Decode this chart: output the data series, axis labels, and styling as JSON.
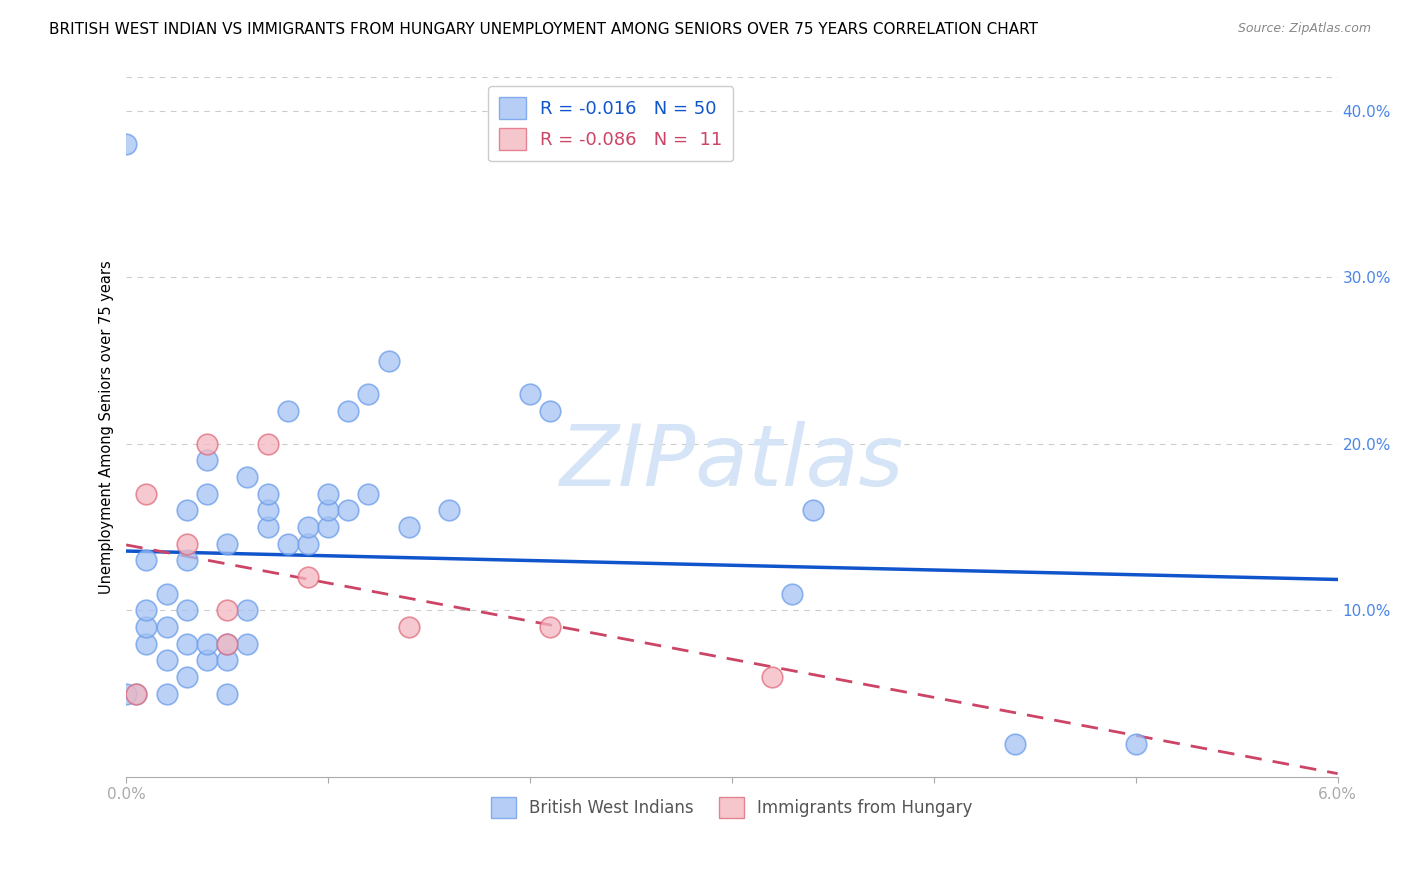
{
  "title": "BRITISH WEST INDIAN VS IMMIGRANTS FROM HUNGARY UNEMPLOYMENT AMONG SENIORS OVER 75 YEARS CORRELATION CHART",
  "source": "Source: ZipAtlas.com",
  "ylabel": "Unemployment Among Seniors over 75 years",
  "xlim": [
    0.0,
    0.06
  ],
  "ylim": [
    0.0,
    0.42
  ],
  "xticks": [
    0.0,
    0.01,
    0.02,
    0.03,
    0.04,
    0.05,
    0.06
  ],
  "xticklabels": [
    "0.0%",
    "",
    "",
    "",
    "",
    "",
    "6.0%"
  ],
  "yticks": [
    0.0,
    0.1,
    0.2,
    0.3,
    0.4
  ],
  "yticklabels_right": [
    "",
    "10.0%",
    "20.0%",
    "30.0%",
    "40.0%"
  ],
  "blue_color": "#a4c2f4",
  "pink_color": "#f4b8c1",
  "blue_edge_color": "#6d9eeb",
  "pink_edge_color": "#e06c7e",
  "blue_line_color": "#1155cc",
  "pink_line_color": "#cc4466",
  "watermark_color": "#d6e4f7",
  "legend_r_blue": "-0.016",
  "legend_n_blue": "50",
  "legend_r_pink": "-0.086",
  "legend_n_pink": "11",
  "blue_x": [
    0.0005,
    0.001,
    0.001,
    0.001,
    0.001,
    0.002,
    0.002,
    0.002,
    0.002,
    0.003,
    0.003,
    0.003,
    0.003,
    0.003,
    0.004,
    0.004,
    0.004,
    0.004,
    0.005,
    0.005,
    0.005,
    0.005,
    0.006,
    0.006,
    0.006,
    0.007,
    0.007,
    0.007,
    0.008,
    0.008,
    0.009,
    0.009,
    0.01,
    0.01,
    0.01,
    0.011,
    0.011,
    0.012,
    0.012,
    0.013,
    0.014,
    0.016,
    0.02,
    0.021,
    0.033,
    0.034,
    0.044,
    0.05,
    0.0,
    0.0
  ],
  "blue_y": [
    0.05,
    0.08,
    0.09,
    0.1,
    0.13,
    0.05,
    0.07,
    0.09,
    0.11,
    0.06,
    0.08,
    0.1,
    0.13,
    0.16,
    0.07,
    0.08,
    0.17,
    0.19,
    0.05,
    0.07,
    0.08,
    0.14,
    0.08,
    0.1,
    0.18,
    0.15,
    0.16,
    0.17,
    0.14,
    0.22,
    0.14,
    0.15,
    0.15,
    0.16,
    0.17,
    0.16,
    0.22,
    0.17,
    0.23,
    0.25,
    0.15,
    0.16,
    0.23,
    0.22,
    0.11,
    0.16,
    0.02,
    0.02,
    0.38,
    0.05
  ],
  "pink_x": [
    0.0005,
    0.001,
    0.003,
    0.004,
    0.005,
    0.005,
    0.007,
    0.009,
    0.014,
    0.021,
    0.032
  ],
  "pink_y": [
    0.05,
    0.17,
    0.14,
    0.2,
    0.08,
    0.1,
    0.2,
    0.12,
    0.09,
    0.09,
    0.06
  ],
  "background_color": "#ffffff",
  "grid_color": "#cccccc",
  "title_fontsize": 11,
  "axis_label_fontsize": 10.5,
  "tick_fontsize": 11,
  "tick_color": "#4a86e8",
  "legend_fontsize": 13
}
